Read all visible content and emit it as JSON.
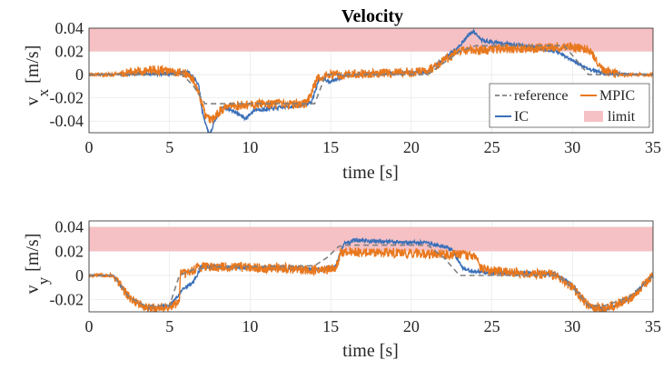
{
  "chart_data": [
    {
      "type": "line",
      "title": "Velocity",
      "xlabel": "time [s]",
      "ylabel": "v",
      "ylabel_sub": "x",
      "ylabel_unit": "[m/s]",
      "xlim": [
        0,
        35
      ],
      "ylim": [
        -0.05,
        0.04
      ],
      "xticks": [
        "0",
        "5",
        "10",
        "15",
        "20",
        "25",
        "30",
        "35"
      ],
      "yticks": [
        "0.04",
        "0.02",
        "0",
        "-0.02",
        "-0.04"
      ],
      "grid": true,
      "limit_band": [
        0.02,
        0.04
      ],
      "legend": {
        "placement": "bottom-right",
        "entries": [
          "reference",
          "MPIC",
          "IC",
          "limit"
        ]
      },
      "series": [
        {
          "name": "reference",
          "style": "dashed",
          "color": "#808080",
          "x": [
            0,
            5.8,
            6.5,
            7.2,
            14,
            14.7,
            21,
            23,
            24,
            29.5,
            31,
            35
          ],
          "y": [
            0,
            0,
            -0.01,
            -0.025,
            -0.025,
            0,
            0,
            0.02,
            0.025,
            0.025,
            0,
            0
          ]
        },
        {
          "name": "MPIC",
          "color": "#e8781e",
          "x": [
            0,
            1.5,
            2.5,
            4,
            5,
            6,
            6.5,
            6.9,
            7.2,
            7.6,
            8.2,
            9,
            10,
            11,
            12,
            13.5,
            14.2,
            15,
            18,
            21,
            22,
            23,
            25,
            28,
            30,
            31,
            32,
            33,
            35
          ],
          "y": [
            0,
            0,
            0.002,
            0.004,
            0.003,
            0.001,
            -0.005,
            -0.02,
            -0.035,
            -0.04,
            -0.03,
            -0.027,
            -0.026,
            -0.025,
            -0.026,
            -0.025,
            -0.003,
            0,
            0.001,
            0.003,
            0.012,
            0.02,
            0.022,
            0.023,
            0.024,
            0.022,
            0.003,
            0,
            0
          ],
          "noise": 0.004
        },
        {
          "name": "IC",
          "color": "#3a6fb8",
          "x": [
            0,
            5,
            6.2,
            6.8,
            7,
            7.3,
            7.5,
            7.8,
            8.3,
            8.8,
            9.4,
            9.7,
            10.3,
            11,
            12,
            13,
            13.8,
            14.3,
            15,
            16,
            18,
            21,
            23,
            23.6,
            23.9,
            24.3,
            25,
            27,
            29,
            30,
            31,
            32,
            35
          ],
          "y": [
            0,
            0.001,
            0.002,
            -0.008,
            -0.03,
            -0.045,
            -0.052,
            -0.04,
            -0.028,
            -0.03,
            -0.035,
            -0.038,
            -0.03,
            -0.03,
            -0.028,
            -0.027,
            -0.024,
            -0.003,
            -0.006,
            0,
            0.001,
            0.002,
            0.025,
            0.035,
            0.037,
            0.03,
            0.028,
            0.025,
            0.02,
            0.012,
            0.005,
            0.001,
            0
          ],
          "noise": 0.0015
        }
      ]
    },
    {
      "type": "line",
      "title": "",
      "xlabel": "time [s]",
      "ylabel": "v",
      "ylabel_sub": "y",
      "ylabel_unit": "[m/s]",
      "xlim": [
        0,
        35
      ],
      "ylim": [
        -0.03,
        0.045
      ],
      "xticks": [
        "0",
        "5",
        "10",
        "15",
        "20",
        "25",
        "30",
        "35"
      ],
      "yticks": [
        "0.04",
        "0.02",
        "0",
        "-0.02"
      ],
      "grid": true,
      "limit_band": [
        0.02,
        0.04
      ],
      "series": [
        {
          "name": "reference",
          "style": "dashed",
          "color": "#808080",
          "x": [
            0,
            1.5,
            2.5,
            3.5,
            5,
            5.6,
            6.5,
            8,
            14,
            14.8,
            15.5,
            16,
            21,
            22,
            23,
            24,
            29,
            30,
            31,
            32,
            33.5,
            35
          ],
          "y": [
            0,
            0,
            -0.018,
            -0.025,
            -0.025,
            0,
            0.005,
            0.007,
            0.008,
            0.015,
            0.024,
            0.025,
            0.025,
            0.015,
            0,
            0,
            0,
            -0.01,
            -0.025,
            -0.025,
            -0.018,
            0
          ],
          "noise": 0
        },
        {
          "name": "MPIC",
          "color": "#e8781e",
          "x": [
            0,
            1.5,
            2.5,
            3.5,
            5.2,
            5.6,
            5.7,
            6,
            6.5,
            7,
            8,
            12,
            14.5,
            15.3,
            15.6,
            16,
            18,
            21,
            23,
            24,
            24.3,
            25,
            27,
            29,
            30,
            31,
            32,
            33.5,
            35
          ],
          "y": [
            0,
            0,
            -0.018,
            -0.027,
            -0.026,
            -0.02,
            0.004,
            0.001,
            0.005,
            0.008,
            0.007,
            0.006,
            0.004,
            0.006,
            0.018,
            0.019,
            0.019,
            0.018,
            0.017,
            0.016,
            0.006,
            0.004,
            0.002,
            0,
            -0.01,
            -0.025,
            -0.027,
            -0.02,
            0
          ],
          "noise": 0.004
        },
        {
          "name": "IC",
          "color": "#3a6fb8",
          "x": [
            0,
            1.5,
            2.5,
            3.5,
            5,
            5.8,
            6.5,
            7,
            8,
            12,
            14.5,
            15.3,
            15.8,
            16.5,
            18,
            21,
            22.5,
            23.2,
            24,
            25,
            27,
            29,
            30,
            31,
            32,
            33.5,
            35
          ],
          "y": [
            0,
            0,
            -0.018,
            -0.027,
            -0.025,
            -0.012,
            -0.005,
            0.008,
            0.007,
            0.006,
            0.005,
            0.007,
            0.026,
            0.029,
            0.028,
            0.027,
            0.022,
            0.006,
            0.003,
            0.002,
            0.002,
            0.001,
            -0.008,
            -0.025,
            -0.028,
            -0.02,
            0
          ],
          "noise": 0.0015
        }
      ]
    }
  ],
  "colors": {
    "reference": "#808080",
    "MPIC": "#e8781e",
    "IC": "#3a6fb8",
    "limit": "#f6c1c4"
  }
}
